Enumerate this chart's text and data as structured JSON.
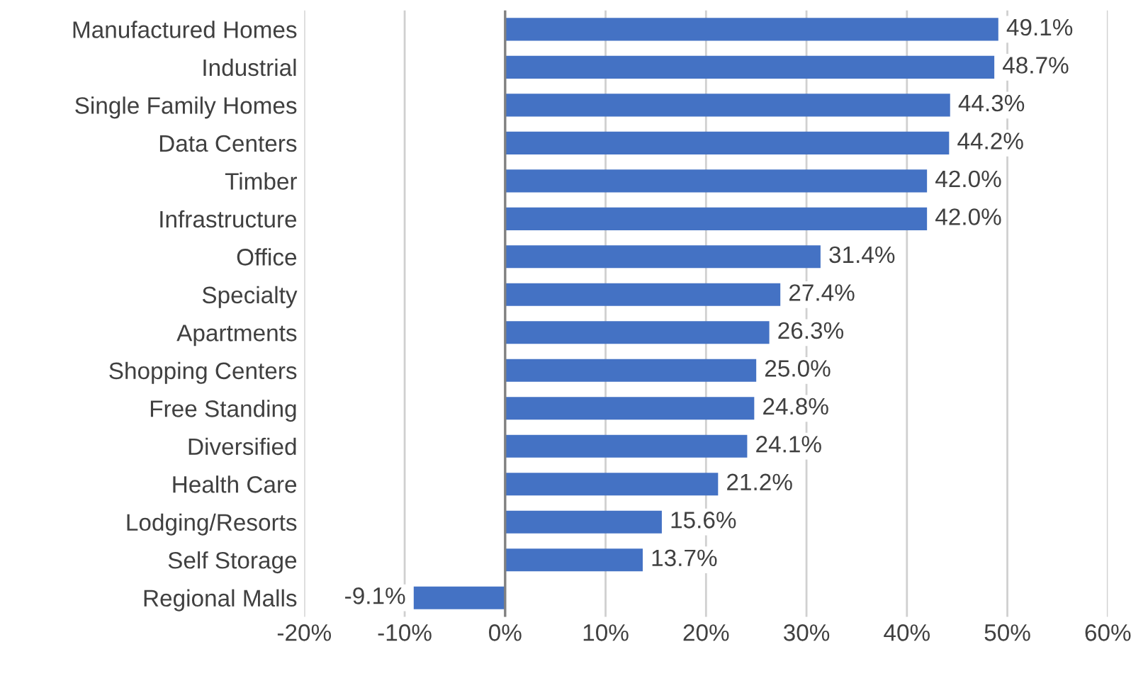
{
  "chart_data": {
    "type": "bar",
    "orientation": "horizontal",
    "categories": [
      "Manufactured Homes",
      "Industrial",
      "Single Family Homes",
      "Data Centers",
      "Timber",
      "Infrastructure",
      "Office",
      "Specialty",
      "Apartments",
      "Shopping Centers",
      "Free Standing",
      "Diversified",
      "Health Care",
      "Lodging/Resorts",
      "Self Storage",
      "Regional Malls"
    ],
    "values": [
      49.1,
      48.7,
      44.3,
      44.2,
      42.0,
      42.0,
      31.4,
      27.4,
      26.3,
      25.0,
      24.8,
      24.1,
      21.2,
      15.6,
      13.7,
      -9.1
    ],
    "value_labels": [
      "49.1%",
      "48.7%",
      "44.3%",
      "44.2%",
      "42.0%",
      "42.0%",
      "31.4%",
      "27.4%",
      "26.3%",
      "25.0%",
      "24.8%",
      "24.1%",
      "21.2%",
      "15.6%",
      "13.7%",
      "-9.1%"
    ],
    "color": "#4472c4",
    "xlim": [
      -20,
      60
    ],
    "xticks": [
      {
        "value": -20,
        "label": "-20%"
      },
      {
        "value": -10,
        "label": "-10%"
      },
      {
        "value": 0,
        "label": "0%"
      },
      {
        "value": 10,
        "label": "10%"
      },
      {
        "value": 20,
        "label": "20%"
      },
      {
        "value": 30,
        "label": "30%"
      },
      {
        "value": 40,
        "label": "40%"
      },
      {
        "value": 50,
        "label": "50%"
      },
      {
        "value": 60,
        "label": "60%"
      }
    ],
    "grid": "x",
    "legend": false
  }
}
